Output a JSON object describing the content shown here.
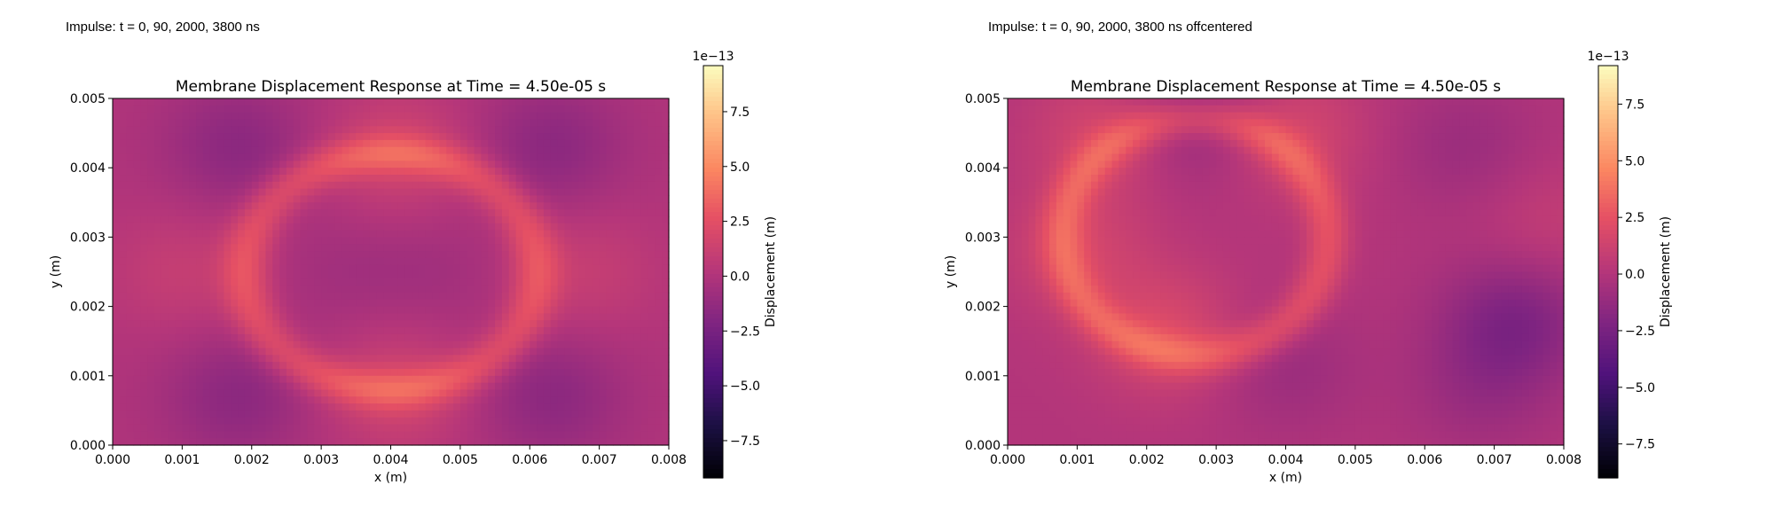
{
  "figure": {
    "panels": [
      {
        "caption": "Impulse: t = 0, 90, 2000, 3800 ns"
      },
      {
        "caption": "Impulse: t = 0, 90, 2000, 3800 ns offcentered"
      }
    ]
  },
  "chart_data": [
    {
      "type": "heatmap",
      "title": "Membrane Displacement Response at Time = 4.50e-05 s",
      "xlabel": "x (m)",
      "ylabel": "y (m)",
      "xlim": [
        0.0,
        0.008
      ],
      "ylim": [
        0.0,
        0.005
      ],
      "xticks": [
        "0.000",
        "0.001",
        "0.002",
        "0.003",
        "0.004",
        "0.005",
        "0.006",
        "0.007",
        "0.008"
      ],
      "yticks": [
        "0.000",
        "0.001",
        "0.002",
        "0.003",
        "0.004",
        "0.005"
      ],
      "colormap": "magma",
      "colorbar": {
        "label": "Displacement (m)",
        "offset_text": "1e−13",
        "range": [
          -9.2,
          9.6
        ],
        "ticks": [
          "7.5",
          "5.0",
          "2.5",
          "0.0",
          "−2.5",
          "−5.0",
          "−7.5"
        ],
        "tick_values": [
          7.5,
          5.0,
          2.5,
          0.0,
          -2.5,
          -5.0,
          -7.5
        ]
      },
      "field_features": {
        "background": 0.0,
        "rings": [
          {
            "cx": 0.004,
            "cy": 0.0025,
            "rx": 0.0021,
            "ry": 0.0017,
            "amplitude": 2.6
          }
        ],
        "blobs": [
          {
            "x": 0.0041,
            "y": 0.0042,
            "amplitude": 1.5
          },
          {
            "x": 0.0041,
            "y": 0.0008,
            "amplitude": 1.5
          },
          {
            "x": 0.001,
            "y": 0.0025,
            "amplitude": 1.0
          },
          {
            "x": 0.0068,
            "y": 0.0025,
            "amplitude": 1.0
          },
          {
            "x": 0.0018,
            "y": 0.0043,
            "amplitude": -1.6
          },
          {
            "x": 0.0063,
            "y": 0.0043,
            "amplitude": -1.6
          },
          {
            "x": 0.0018,
            "y": 0.0007,
            "amplitude": -1.6
          },
          {
            "x": 0.0063,
            "y": 0.0007,
            "amplitude": -1.6
          },
          {
            "x": 0.0033,
            "y": 0.0025,
            "amplitude": -0.6
          },
          {
            "x": 0.0047,
            "y": 0.0025,
            "amplitude": -0.6
          }
        ]
      }
    },
    {
      "type": "heatmap",
      "title": "Membrane Displacement Response at Time = 4.50e-05 s",
      "xlabel": "x (m)",
      "ylabel": "y (m)",
      "xlim": [
        0.0,
        0.008
      ],
      "ylim": [
        0.0,
        0.005
      ],
      "xticks": [
        "0.000",
        "0.001",
        "0.002",
        "0.003",
        "0.004",
        "0.005",
        "0.006",
        "0.007",
        "0.008"
      ],
      "yticks": [
        "0.000",
        "0.001",
        "0.002",
        "0.003",
        "0.004",
        "0.005"
      ],
      "colormap": "magma",
      "colorbar": {
        "label": "Displacement (m)",
        "offset_text": "1e−13",
        "range": [
          -9.0,
          9.2
        ],
        "ticks": [
          "7.5",
          "5.0",
          "2.5",
          "0.0",
          "−2.5",
          "−5.0",
          "−7.5"
        ],
        "tick_values": [
          7.5,
          5.0,
          2.5,
          0.0,
          -2.5,
          -5.0,
          -7.5
        ]
      },
      "field_features": {
        "background": 0.0,
        "rings": [
          {
            "cx": 0.0027,
            "cy": 0.003,
            "rx": 0.0019,
            "ry": 0.0017,
            "amplitude": 2.4
          }
        ],
        "blobs": [
          {
            "x": 0.0014,
            "y": 0.0045,
            "amplitude": 1.6
          },
          {
            "x": 0.0041,
            "y": 0.0045,
            "amplitude": 1.6
          },
          {
            "x": 0.001,
            "y": 0.0028,
            "amplitude": 1.4
          },
          {
            "x": 0.0023,
            "y": 0.0016,
            "amplitude": 1.8
          },
          {
            "x": 0.0027,
            "y": 0.0047,
            "amplitude": -1.6
          },
          {
            "x": 0.0073,
            "y": 0.0018,
            "amplitude": -2.2
          },
          {
            "x": 0.0066,
            "y": 0.0043,
            "amplitude": -1.0
          },
          {
            "x": 0.004,
            "y": 0.0011,
            "amplitude": -1.0
          },
          {
            "x": 0.0068,
            "y": 0.0008,
            "amplitude": -1.0
          },
          {
            "x": 0.0078,
            "y": 0.0032,
            "amplitude": 0.8
          }
        ]
      }
    }
  ]
}
